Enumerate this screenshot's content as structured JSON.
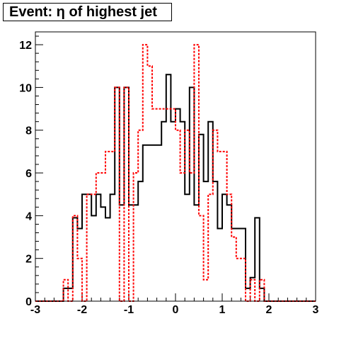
{
  "chart_data": {
    "type": "line",
    "title": "Event: η of highest jet",
    "xlabel": "",
    "ylabel": "",
    "xlim": [
      -3,
      3
    ],
    "ylim": [
      0,
      12.6
    ],
    "x_ticks": [
      "-3",
      "-2",
      "-1",
      "0",
      "1",
      "2",
      "3"
    ],
    "y_ticks": [
      "0",
      "2",
      "4",
      "6",
      "8",
      "10",
      "12"
    ],
    "grid": false,
    "legend": "none",
    "bin_edges": [
      -3.0,
      -2.9,
      -2.8,
      -2.7,
      -2.6,
      -2.5,
      -2.4,
      -2.3,
      -2.2,
      -2.1,
      -2.0,
      -1.9,
      -1.8,
      -1.7,
      -1.6,
      -1.5,
      -1.4,
      -1.3,
      -1.2,
      -1.1,
      -1.0,
      -0.9,
      -0.8,
      -0.7,
      -0.6,
      -0.5,
      -0.4,
      -0.3,
      -0.2,
      -0.1,
      0.0,
      0.1,
      0.2,
      0.3,
      0.4,
      0.5,
      0.6,
      0.7,
      0.8,
      0.9,
      1.0,
      1.1,
      1.2,
      1.3,
      1.4,
      1.5,
      1.6,
      1.7,
      1.8,
      1.9,
      2.0,
      2.1,
      2.2,
      2.3,
      2.4,
      2.5,
      2.6,
      2.7,
      2.8,
      2.9,
      3.0
    ],
    "series": [
      {
        "color": "#000000",
        "style": "solid",
        "values": [
          0,
          0,
          0,
          0,
          0,
          0,
          0.6,
          0.6,
          3.9,
          3.4,
          5.0,
          5.0,
          4.0,
          5.0,
          4.4,
          3.9,
          5.0,
          10.0,
          4.5,
          10.0,
          4.5,
          4.5,
          5.6,
          7.3,
          7.3,
          7.3,
          7.3,
          8.4,
          10.6,
          8.4,
          9.0,
          8.4,
          5.0,
          10.0,
          4.5,
          7.8,
          5.6,
          8.4,
          5.6,
          3.4,
          5.0,
          4.5,
          3.4,
          3.4,
          3.4,
          0.6,
          1.1,
          3.9,
          0.6,
          0,
          0,
          0,
          0,
          0,
          0,
          0,
          0,
          0,
          0,
          0
        ]
      },
      {
        "color": "#ff0000",
        "style": "dashed",
        "values": [
          0,
          0,
          0,
          0,
          0,
          0,
          1.0,
          0,
          4.0,
          2.0,
          0,
          5.0,
          5.0,
          6.0,
          6.0,
          7.0,
          7.0,
          10.0,
          0,
          10.0,
          0,
          6.0,
          8.0,
          12.0,
          11.0,
          9.0,
          9.0,
          9.0,
          9.0,
          9.0,
          8.0,
          6.0,
          8.0,
          6.0,
          12.0,
          4.0,
          1.0,
          5.0,
          8.0,
          7.0,
          7.0,
          5.0,
          3.0,
          2.0,
          2.0,
          0,
          1.0,
          0,
          1.0,
          0,
          0,
          0,
          0,
          0,
          0,
          0,
          0,
          0,
          0,
          0
        ]
      }
    ]
  }
}
